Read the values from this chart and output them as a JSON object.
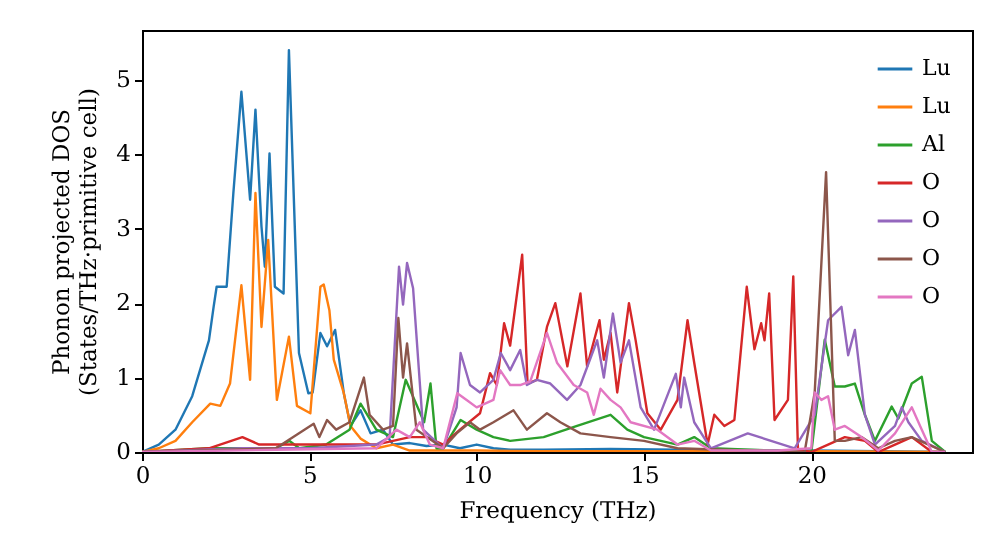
{
  "chart_data": {
    "type": "line",
    "xlabel": "Frequency (THz)",
    "ylabel": "Phonon projected DOS\n(States/THz·primitive cell)",
    "xlim": [
      0,
      24.8
    ],
    "ylim": [
      0,
      5.67
    ],
    "xticks": [
      0,
      5,
      10,
      15,
      20
    ],
    "yticks": [
      0,
      1,
      2,
      3,
      4,
      5
    ],
    "grid": false,
    "legend": "top right",
    "marker": "none",
    "line_style": "solid",
    "series": [
      {
        "name": "Lu",
        "color": "#1f77b4",
        "x": [
          0,
          0.5,
          1,
          1.5,
          2,
          2.14,
          2.23,
          2.53,
          2.73,
          2.97,
          3.23,
          3.39,
          3.57,
          3.67,
          3.81,
          3.97,
          4.23,
          4.39,
          4.69,
          4.97,
          5.1,
          5.33,
          5.53,
          5.77,
          6.03,
          6.23,
          6.53,
          6.83,
          7.2,
          7.5,
          8,
          8.5,
          9,
          9.5,
          10,
          10.5,
          11,
          12,
          14,
          16,
          20,
          22,
          24
        ],
        "values": [
          0,
          0.1,
          0.3,
          0.75,
          1.5,
          1.95,
          2.22,
          2.22,
          3.48,
          4.84,
          3.39,
          4.6,
          3.03,
          2.49,
          4.01,
          2.22,
          2.13,
          5.4,
          1.33,
          0.79,
          0.8,
          1.6,
          1.42,
          1.64,
          0.79,
          0.35,
          0.56,
          0.25,
          0.3,
          0.1,
          0.12,
          0.08,
          0.1,
          0.05,
          0.1,
          0.05,
          0.03,
          0.03,
          0.04,
          0.03,
          0.02,
          0.01,
          0
        ]
      },
      {
        "name": "Lu",
        "color": "#ff7f0e",
        "x": [
          0,
          0.5,
          1,
          1.5,
          2.04,
          2.34,
          2.63,
          2.97,
          3.23,
          3.39,
          3.57,
          3.77,
          4.03,
          4.39,
          4.63,
          5.03,
          5.33,
          5.43,
          5.6,
          5.73,
          6.03,
          6.23,
          6.53,
          7,
          7.5,
          8,
          9,
          10,
          12,
          16,
          20,
          24
        ],
        "values": [
          0,
          0.05,
          0.15,
          0.4,
          0.65,
          0.62,
          0.92,
          2.24,
          0.97,
          3.48,
          1.68,
          2.85,
          0.7,
          1.55,
          0.62,
          0.52,
          2.22,
          2.25,
          1.9,
          1.24,
          0.79,
          0.35,
          0.18,
          0.05,
          0.1,
          0.02,
          0.02,
          0.02,
          0.01,
          0.01,
          0.01,
          0
        ]
      },
      {
        "name": "Al",
        "color": "#2ca02c",
        "x": [
          0,
          2,
          4,
          4.4,
          4.7,
          5.5,
          6.2,
          6.53,
          7,
          7.5,
          7.88,
          8.43,
          8.62,
          8.8,
          9,
          9.52,
          10,
          10.5,
          11,
          12,
          13,
          14,
          14.5,
          15,
          16,
          16.5,
          17,
          20,
          20.4,
          20.7,
          21,
          21.3,
          21.6,
          21.9,
          22.4,
          22.6,
          23,
          23.3,
          23.6,
          24
        ],
        "values": [
          0,
          0.05,
          0.05,
          0.15,
          0.05,
          0.1,
          0.3,
          0.65,
          0.3,
          0.2,
          0.97,
          0.4,
          0.92,
          0.05,
          0.05,
          0.43,
          0.3,
          0.2,
          0.15,
          0.2,
          0.35,
          0.5,
          0.3,
          0.2,
          0.1,
          0.2,
          0.05,
          0,
          1.51,
          0.88,
          0.88,
          0.92,
          0.5,
          0.15,
          0.61,
          0.45,
          0.92,
          1.01,
          0.15,
          0
        ]
      },
      {
        "name": "O",
        "color": "#d62728",
        "x": [
          0,
          2,
          3,
          3.5,
          4,
          5,
          6,
          7,
          8,
          8.5,
          9,
          9.5,
          10.1,
          10.4,
          10.6,
          10.82,
          11,
          11.36,
          11.52,
          11.8,
          12.1,
          12.35,
          12.71,
          13.1,
          13.3,
          13.67,
          13.8,
          14,
          14.2,
          14.55,
          14.75,
          15.1,
          15.5,
          16,
          16.3,
          16.5,
          16.9,
          17.1,
          17.4,
          17.7,
          18.07,
          18.3,
          18.5,
          18.6,
          18.74,
          18.9,
          19.3,
          19.46,
          19.6,
          20,
          20.5,
          21,
          21.6,
          22,
          22.5,
          23,
          23.6,
          24
        ],
        "values": [
          0,
          0.05,
          0.2,
          0.1,
          0.1,
          0.1,
          0.1,
          0.1,
          0.2,
          0.2,
          0.1,
          0.3,
          0.52,
          1.06,
          0.9,
          1.73,
          1.43,
          2.65,
          0.92,
          0.97,
          1.68,
          2.0,
          1.15,
          2.13,
          1.15,
          1.77,
          1.24,
          1.6,
          0.8,
          2.0,
          1.5,
          0.52,
          0.3,
          0.7,
          1.77,
          1.2,
          0.1,
          0.5,
          0.35,
          0.43,
          2.22,
          1.38,
          1.73,
          1.5,
          2.13,
          0.43,
          0.7,
          2.36,
          0.03,
          0,
          0.1,
          0.2,
          0.15,
          0,
          0.1,
          0.2,
          0,
          0
        ]
      },
      {
        "name": "O",
        "color": "#9467bd",
        "x": [
          0,
          3,
          5,
          7,
          7.4,
          7.68,
          7.8,
          7.92,
          8.1,
          8.4,
          9,
          9.4,
          9.52,
          9.8,
          10.1,
          10.5,
          10.72,
          11,
          11.3,
          11.5,
          11.8,
          12.2,
          12.7,
          13.1,
          13.6,
          13.8,
          14.07,
          14.3,
          14.55,
          14.9,
          15.3,
          15.95,
          16.1,
          16.2,
          16.5,
          17,
          18.1,
          19.5,
          20.1,
          20.5,
          20.9,
          21.1,
          21.3,
          21.6,
          21.9,
          22.5,
          22.7,
          22.9,
          23.3,
          24
        ],
        "values": [
          0,
          0.05,
          0.05,
          0.1,
          0.2,
          2.49,
          1.98,
          2.54,
          2.2,
          0.3,
          0.05,
          0.6,
          1.33,
          0.9,
          0.8,
          0.97,
          1.33,
          1.1,
          1.37,
          0.9,
          0.97,
          0.92,
          0.7,
          0.9,
          1.5,
          1.0,
          1.86,
          1.2,
          1.5,
          0.6,
          0.3,
          1.05,
          0.6,
          1.0,
          0.4,
          0.05,
          0.25,
          0.05,
          0.5,
          1.77,
          1.95,
          1.3,
          1.64,
          0.5,
          0.1,
          0.35,
          0.6,
          0.4,
          0.15,
          0
        ]
      },
      {
        "name": "O",
        "color": "#8c564b",
        "x": [
          0,
          4,
          5.13,
          5.3,
          5.53,
          5.8,
          6.2,
          6.63,
          6.8,
          7.2,
          7.5,
          7.66,
          7.8,
          7.92,
          8.2,
          9,
          9.4,
          9.8,
          10.1,
          10.5,
          11.1,
          11.5,
          12.1,
          12.5,
          13.1,
          14,
          15,
          16,
          18,
          19.8,
          20.1,
          20.44,
          20.7,
          21,
          21.5,
          22,
          22.5,
          23,
          23.5,
          24
        ],
        "values": [
          0,
          0.05,
          0.38,
          0.2,
          0.43,
          0.3,
          0.4,
          1.0,
          0.5,
          0.3,
          0.35,
          1.8,
          1.0,
          1.46,
          0.3,
          0.05,
          0.25,
          0.4,
          0.3,
          0.4,
          0.56,
          0.3,
          0.52,
          0.4,
          0.25,
          0.2,
          0.15,
          0.05,
          0.02,
          0,
          0.8,
          3.76,
          0.15,
          0.15,
          0.2,
          0.05,
          0.15,
          0.2,
          0.1,
          0
        ]
      },
      {
        "name": "O",
        "color": "#e377c2",
        "x": [
          0,
          4,
          7,
          7.6,
          8,
          8.3,
          8.6,
          9,
          9.42,
          9.7,
          10,
          10.5,
          10.7,
          11,
          11.3,
          11.6,
          12.1,
          12.4,
          12.9,
          13.3,
          13.5,
          13.7,
          14,
          14.3,
          14.6,
          15.4,
          16,
          16.5,
          17,
          19,
          20,
          20.1,
          20.3,
          20.5,
          20.7,
          21,
          21.5,
          22,
          22.5,
          23,
          23.3,
          23.6,
          24
        ],
        "values": [
          0,
          0.03,
          0.05,
          0.3,
          0.2,
          0.4,
          0.1,
          0.05,
          0.79,
          0.7,
          0.6,
          0.7,
          1.1,
          0.9,
          0.9,
          0.95,
          1.6,
          1.2,
          0.9,
          0.8,
          0.5,
          0.85,
          0.7,
          0.6,
          0.4,
          0.3,
          0.1,
          0.15,
          0.02,
          0.02,
          0.05,
          0.8,
          0.7,
          0.75,
          0.3,
          0.35,
          0.2,
          0.02,
          0.25,
          0.6,
          0.3,
          0,
          0
        ]
      }
    ]
  }
}
